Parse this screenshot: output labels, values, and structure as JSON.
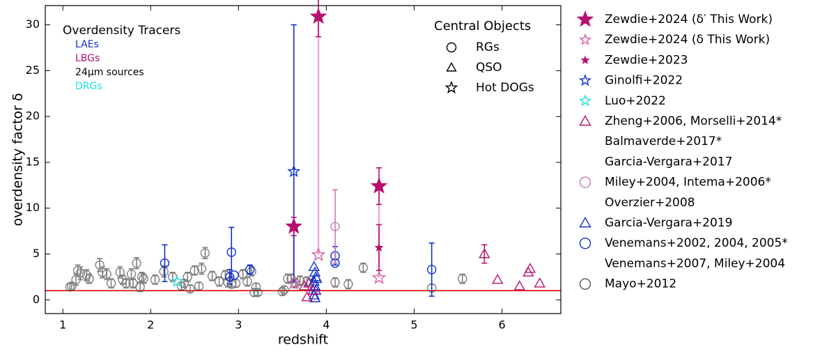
{
  "chart_data": {
    "type": "scatter",
    "xlabel": "redshift",
    "ylabel": "overdensity factor δ",
    "xlim": [
      0.8,
      6.67
    ],
    "xticks": [
      1,
      2,
      3,
      4,
      5,
      6
    ],
    "ylim": [
      -1.5,
      32.1
    ],
    "yticks": [
      0,
      5,
      10,
      15,
      20,
      25,
      30
    ],
    "reference_line": {
      "value": 1,
      "color": "#ee1111"
    },
    "tracer_legend": {
      "title": "Overdensity Tracers",
      "items": [
        {
          "label": "LAEs",
          "color": "#1030c8"
        },
        {
          "label": "LBGs",
          "color": "#b5106e"
        },
        {
          "label": "24μm sources",
          "color": "#000000"
        },
        {
          "label": "DRGs",
          "color": "#20e0e0"
        }
      ]
    },
    "central_legend": {
      "title": "Central Objects",
      "items": [
        {
          "label": "RGs",
          "marker": "circle"
        },
        {
          "label": "QSO",
          "marker": "triangle"
        },
        {
          "label": "Hot DOGs",
          "marker": "star"
        }
      ]
    },
    "series": [
      {
        "name": [
          "Zewdie+2024 (δ′ This Work)"
        ],
        "color": "#b5106e",
        "marker": "star",
        "filled": true,
        "size": 11,
        "alpha": 1,
        "x": [
          3.63,
          3.91,
          4.6
        ],
        "values": [
          8.0,
          30.9,
          12.4
        ],
        "errors": [
          1.0,
          2.2,
          2.0
        ]
      },
      {
        "name": [
          "Zewdie+2024 (δ This Work)"
        ],
        "color": "#d45fa0",
        "marker": "star",
        "filled": false,
        "size": 9,
        "alpha": 1,
        "x": [
          3.63,
          3.91,
          4.6
        ],
        "values": [
          1.8,
          4.9,
          2.4
        ],
        "errors": [
          null,
          null,
          null
        ]
      },
      {
        "name": [
          "Zewdie+2023"
        ],
        "color": "#b5106e",
        "marker": "star",
        "filled": true,
        "size": 5,
        "alpha": 1,
        "x": [
          4.6
        ],
        "values": [
          5.7
        ],
        "errors": [
          2.5
        ]
      },
      {
        "name": [
          "Ginolfi+2022"
        ],
        "color": "#1030c8",
        "marker": "star",
        "filled": false,
        "size": 8,
        "alpha": 1,
        "x": [
          3.63
        ],
        "values": [
          14.0
        ],
        "errors": [
          [
            12.0,
            16.0
          ]
        ]
      },
      {
        "name": [
          "Luo+2022"
        ],
        "color": "#20e0e0",
        "marker": "star",
        "filled": false,
        "size": 8,
        "alpha": 1,
        "x": [
          2.3
        ],
        "values": [
          2.0
        ],
        "errors": [
          null
        ]
      },
      {
        "name": [
          "Zheng+2006, Morselli+2014*",
          "Balmaverde+2017*",
          "Garcia-Vergara+2017"
        ],
        "color": "#b5106e",
        "marker": "triangle",
        "filled": false,
        "size": 7,
        "alpha": 1,
        "x": [
          3.75,
          3.8,
          3.78,
          3.85,
          5.8,
          5.95,
          6.2,
          6.3,
          6.32,
          6.43
        ],
        "values": [
          1.5,
          1.8,
          0.3,
          1.0,
          5.0,
          2.2,
          1.5,
          3.0,
          3.4,
          1.8
        ],
        "errors": [
          null,
          null,
          null,
          null,
          1.0,
          null,
          null,
          null,
          null,
          null
        ]
      },
      {
        "name": [
          "Miley+2004, Intema+2006*",
          "Overzier+2008"
        ],
        "color": "#c878b0",
        "marker": "circle",
        "filled": false,
        "size": 6,
        "alpha": 1,
        "x": [
          4.1
        ],
        "values": [
          8.0
        ],
        "errors": [
          4.0
        ]
      },
      {
        "name": [
          "Garcia-Vergara+2019"
        ],
        "color": "#1030c8",
        "marker": "triangle",
        "filled": false,
        "size": 7,
        "alpha": 1,
        "x": [
          3.86,
          3.87,
          3.88,
          3.86,
          3.87,
          3.88,
          3.86,
          3.87,
          3.89
        ],
        "values": [
          3.6,
          3.0,
          2.5,
          2.0,
          1.5,
          1.0,
          0.5,
          0.2,
          2.3
        ],
        "errors": [
          null,
          null,
          null,
          null,
          null,
          null,
          null,
          null,
          null
        ]
      },
      {
        "name": [
          "Venemans+2002, 2004, 2005*",
          "Venemans+2007, Miley+2004"
        ],
        "color": "#1030c8",
        "marker": "circle",
        "filled": false,
        "size": 6,
        "alpha": 1,
        "x": [
          2.16,
          2.9,
          2.92,
          2.95,
          3.13,
          4.1,
          4.1,
          5.2
        ],
        "values": [
          4.0,
          2.5,
          5.2,
          2.7,
          3.3,
          4.8,
          4.0,
          3.3
        ],
        "errors": [
          2.0,
          0.8,
          2.7,
          null,
          0.5,
          1.0,
          null,
          2.9
        ]
      },
      {
        "name": [
          "Mayo+2012"
        ],
        "color": "#555555",
        "marker": "circle",
        "filled": false,
        "size": 6,
        "alpha": 0.75,
        "x": [
          1.08,
          1.1,
          1.15,
          1.17,
          1.2,
          1.27,
          1.3,
          1.42,
          1.45,
          1.5,
          1.55,
          1.65,
          1.68,
          1.72,
          1.78,
          1.8,
          1.84,
          1.88,
          1.9,
          1.92,
          2.05,
          2.15,
          2.25,
          2.35,
          2.38,
          2.42,
          2.45,
          2.5,
          2.55,
          2.58,
          2.62,
          2.7,
          2.78,
          2.85,
          2.88,
          2.92,
          2.97,
          3.05,
          3.1,
          3.15,
          3.18,
          3.2,
          3.22,
          3.5,
          3.52,
          3.56,
          3.6,
          3.65,
          3.7,
          3.78,
          4.1,
          4.25,
          4.42,
          5.2,
          5.55
        ],
        "values": [
          1.4,
          1.5,
          2.2,
          3.2,
          2.9,
          2.7,
          2.3,
          3.8,
          3.0,
          2.8,
          1.8,
          3.0,
          2.2,
          1.8,
          2.8,
          1.8,
          4.0,
          1.4,
          2.5,
          2.3,
          2.2,
          3.1,
          2.5,
          1.5,
          1.8,
          2.5,
          1.2,
          3.2,
          1.5,
          3.4,
          5.1,
          2.6,
          2.0,
          2.7,
          1.9,
          1.7,
          1.8,
          2.8,
          2.0,
          3.1,
          0.8,
          1.4,
          0.8,
          0.9,
          1.1,
          2.3,
          2.3,
          1.8,
          2.1,
          2.0,
          1.9,
          1.7,
          3.5,
          1.3,
          2.3
        ],
        "errors": [
          0.4,
          0.4,
          0.6,
          0.6,
          0.7,
          0.6,
          0.5,
          0.7,
          0.6,
          0.6,
          0.5,
          0.6,
          0.5,
          0.5,
          0.6,
          0.5,
          0.6,
          0.5,
          0.5,
          0.5,
          0.5,
          0.6,
          0.5,
          0.4,
          0.4,
          0.5,
          0.4,
          0.5,
          0.4,
          0.6,
          0.6,
          0.5,
          0.5,
          0.5,
          0.5,
          0.4,
          0.4,
          0.5,
          0.5,
          0.5,
          0.4,
          0.4,
          0.3,
          0.4,
          0.4,
          0.5,
          0.5,
          0.5,
          0.5,
          0.5,
          0.5,
          0.5,
          0.5,
          0.4,
          0.5
        ]
      }
    ]
  }
}
